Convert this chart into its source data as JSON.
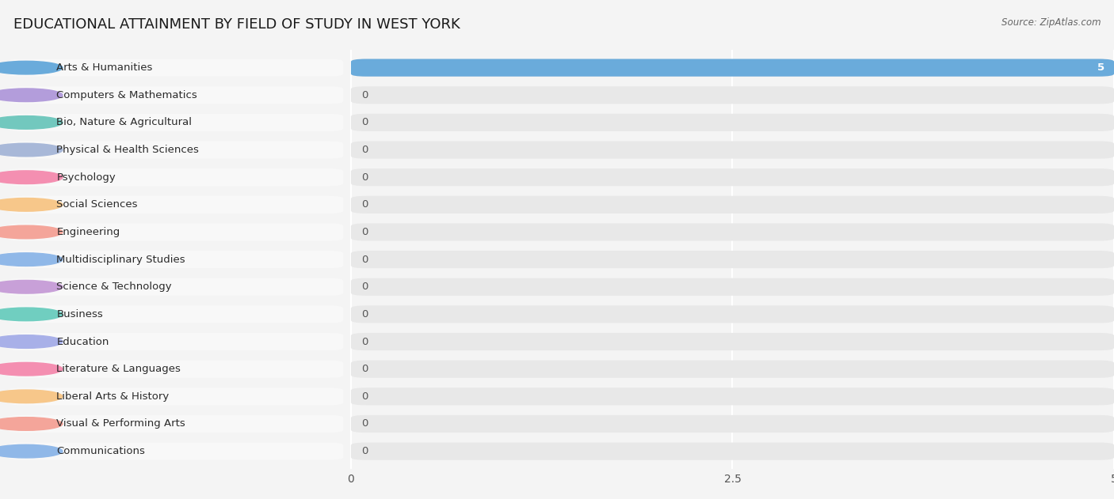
{
  "title": "EDUCATIONAL ATTAINMENT BY FIELD OF STUDY IN WEST YORK",
  "source": "Source: ZipAtlas.com",
  "categories": [
    "Arts & Humanities",
    "Computers & Mathematics",
    "Bio, Nature & Agricultural",
    "Physical & Health Sciences",
    "Psychology",
    "Social Sciences",
    "Engineering",
    "Multidisciplinary Studies",
    "Science & Technology",
    "Business",
    "Education",
    "Literature & Languages",
    "Liberal Arts & History",
    "Visual & Performing Arts",
    "Communications"
  ],
  "values": [
    5,
    0,
    0,
    0,
    0,
    0,
    0,
    0,
    0,
    0,
    0,
    0,
    0,
    0,
    0
  ],
  "bar_colors": [
    "#6aabdb",
    "#b39ddb",
    "#72c8be",
    "#a8b8d8",
    "#f48fb1",
    "#f7c78a",
    "#f4a59a",
    "#90b8e8",
    "#c8a0d8",
    "#70cec0",
    "#a8b0e8",
    "#f48fb1",
    "#f7c78a",
    "#f4a59a",
    "#90b8e8"
  ],
  "label_bg_colors": [
    "#e8f4fc",
    "#f0ecf8",
    "#e4f4f0",
    "#edf0f8",
    "#fce8f0",
    "#fef4e8",
    "#fdecea",
    "#e8f0fc",
    "#f4ecf8",
    "#e4f8f8",
    "#eceef8",
    "#fce8f0",
    "#fef4e8",
    "#fdecea",
    "#e8f0fc"
  ],
  "full_bar_color": "#e8e8e8",
  "xlim_data": [
    0,
    5
  ],
  "xticks": [
    0,
    2.5,
    5
  ],
  "bg_color": "#f4f4f4",
  "grid_color": "#ffffff",
  "title_fontsize": 13,
  "label_fontsize": 9.5,
  "value_fontsize": 9.5,
  "bar_height": 0.68
}
